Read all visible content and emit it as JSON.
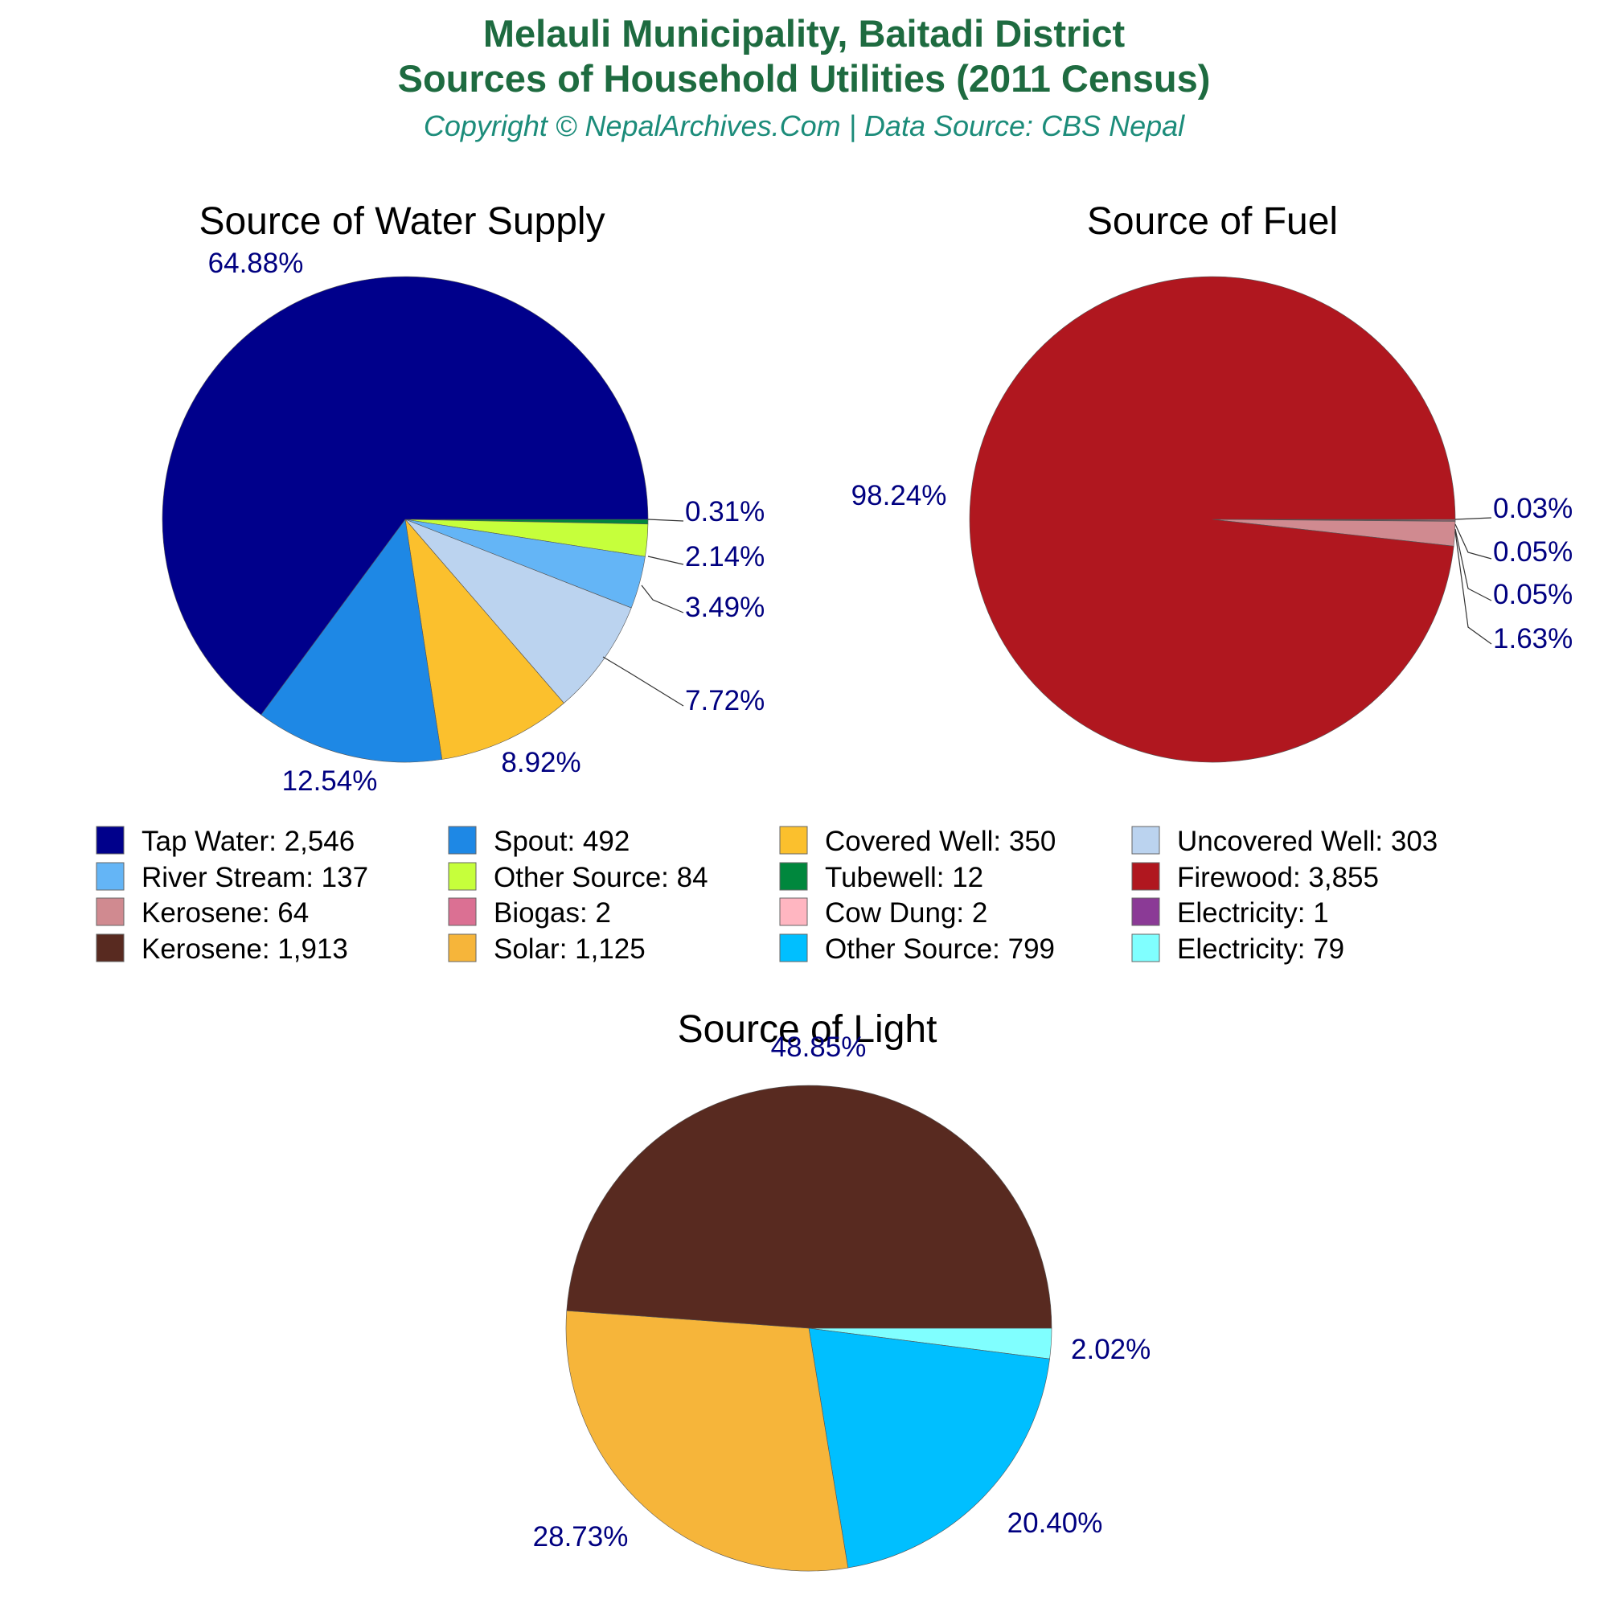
{
  "header": {
    "title_line1": "Melauli Municipality, Baitadi District",
    "title_line2": "Sources of Household Utilities (2011 Census)",
    "subtitle": "Copyright © NepalArchives.Com | Data Source: CBS Nepal",
    "title_color": "#1e6b40",
    "subtitle_color": "#1c8c7a"
  },
  "label_color": "#000080",
  "chart_data": [
    {
      "type": "pie",
      "title": "Source of Water Supply",
      "slices": [
        {
          "label": "Tap Water",
          "value": 2546,
          "value_text": "2,546",
          "percent_text": "64.88%",
          "color": "#00008b"
        },
        {
          "label": "Spout",
          "value": 492,
          "value_text": "492",
          "percent_text": "12.54%",
          "color": "#1e88e5"
        },
        {
          "label": "Covered Well",
          "value": 350,
          "value_text": "350",
          "percent_text": "8.92%",
          "color": "#fbc02d"
        },
        {
          "label": "Uncovered Well",
          "value": 303,
          "value_text": "303",
          "percent_text": "7.72%",
          "color": "#bbd3ef"
        },
        {
          "label": "River Stream",
          "value": 137,
          "value_text": "137",
          "percent_text": "3.49%",
          "color": "#64b5f6"
        },
        {
          "label": "Other Source",
          "value": 84,
          "value_text": "84",
          "percent_text": "2.14%",
          "color": "#c6ff3b"
        },
        {
          "label": "Tubewell",
          "value": 12,
          "value_text": "12",
          "percent_text": "0.31%",
          "color": "#00873d"
        }
      ]
    },
    {
      "type": "pie",
      "title": "Source of Fuel",
      "slices": [
        {
          "label": "Firewood",
          "value": 3855,
          "value_text": "3,855",
          "percent_text": "98.24%",
          "color": "#b0171f"
        },
        {
          "label": "Kerosene",
          "value": 64,
          "value_text": "64",
          "percent_text": "1.63%",
          "color": "#d08a90"
        },
        {
          "label": "Biogas",
          "value": 2,
          "value_text": "2",
          "percent_text": "0.05%",
          "color": "#db7093"
        },
        {
          "label": "Cow Dung",
          "value": 2,
          "value_text": "2",
          "percent_text": "0.05%",
          "color": "#ffb6c1"
        },
        {
          "label": "Electricity",
          "value": 1,
          "value_text": "1",
          "percent_text": "0.03%",
          "color": "#8b3a96"
        }
      ]
    },
    {
      "type": "pie",
      "title": "Source of Light",
      "slices": [
        {
          "label": "Kerosene",
          "value": 1913,
          "value_text": "1,913",
          "percent_text": "48.85%",
          "color": "#582a20"
        },
        {
          "label": "Solar",
          "value": 1125,
          "value_text": "1,125",
          "percent_text": "28.73%",
          "color": "#f6b53a"
        },
        {
          "label": "Other Source",
          "value": 799,
          "value_text": "799",
          "percent_text": "20.40%",
          "color": "#00bfff"
        },
        {
          "label": "Electricity",
          "value": 79,
          "value_text": "79",
          "percent_text": "2.02%",
          "color": "#80ffff"
        }
      ]
    }
  ],
  "legend": [
    {
      "text": "Tap Water: 2,546",
      "color": "#00008b"
    },
    {
      "text": "Spout: 492",
      "color": "#1e88e5"
    },
    {
      "text": "Covered Well: 350",
      "color": "#fbc02d"
    },
    {
      "text": "Uncovered Well: 303",
      "color": "#bbd3ef"
    },
    {
      "text": "River Stream: 137",
      "color": "#64b5f6"
    },
    {
      "text": "Other Source: 84",
      "color": "#c6ff3b"
    },
    {
      "text": "Tubewell: 12",
      "color": "#00873d"
    },
    {
      "text": "Firewood: 3,855",
      "color": "#b0171f"
    },
    {
      "text": "Kerosene: 64",
      "color": "#d08a90"
    },
    {
      "text": "Biogas: 2",
      "color": "#db7093"
    },
    {
      "text": "Cow Dung: 2",
      "color": "#ffb6c1"
    },
    {
      "text": "Electricity: 1",
      "color": "#8b3a96"
    },
    {
      "text": "Kerosene: 1,913",
      "color": "#582a20"
    },
    {
      "text": "Solar: 1,125",
      "color": "#f6b53a"
    },
    {
      "text": "Other Source: 799",
      "color": "#00bfff"
    },
    {
      "text": "Electricity: 79",
      "color": "#80ffff"
    }
  ]
}
